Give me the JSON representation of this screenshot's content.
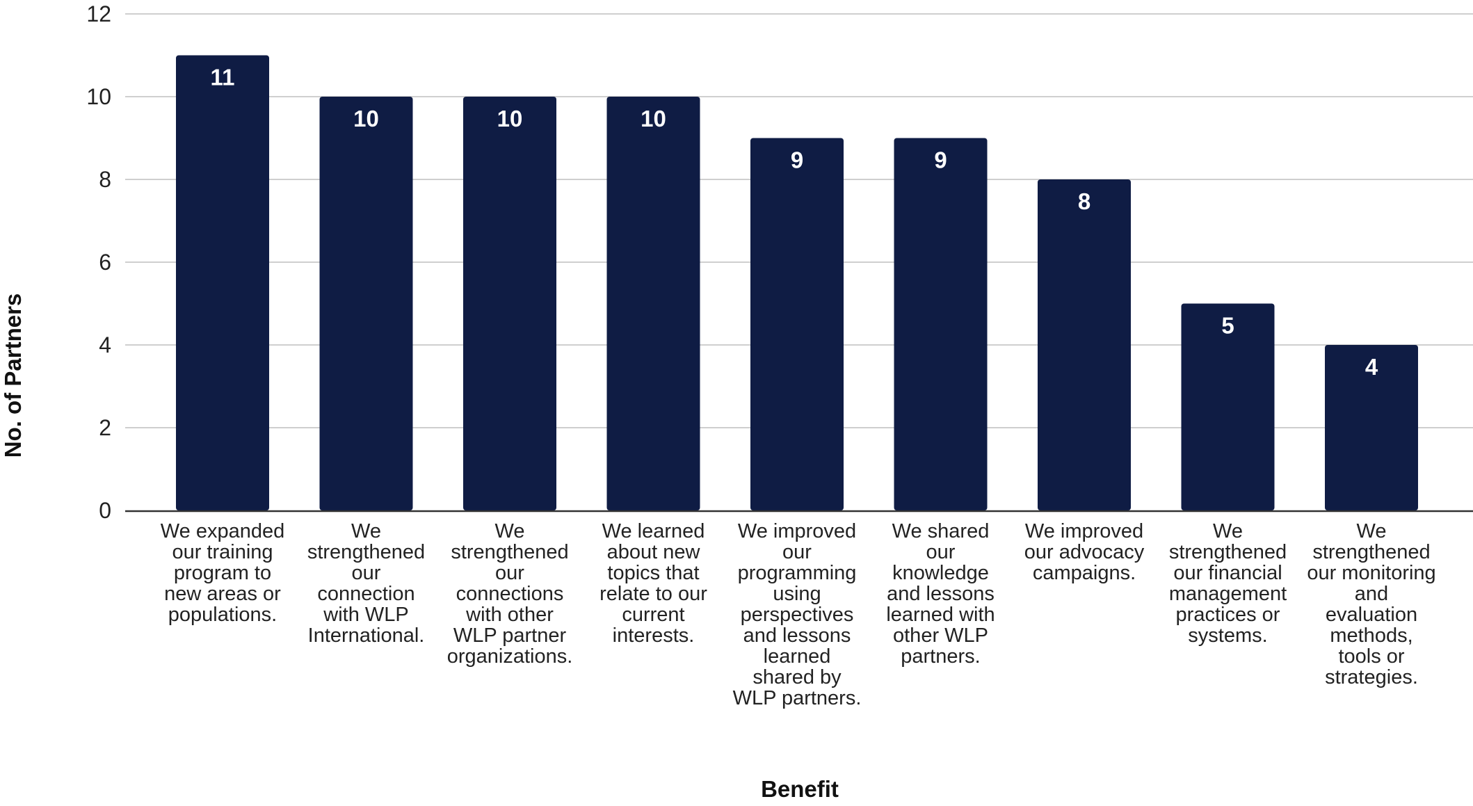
{
  "chart_data": {
    "type": "bar",
    "title": "",
    "xlabel": "Benefit",
    "ylabel": "No. of Partners",
    "ylim": [
      0,
      12
    ],
    "yticks": [
      0,
      2,
      4,
      6,
      8,
      10,
      12
    ],
    "grid": true,
    "legend": "none",
    "categories": [
      [
        "We expanded",
        "our training",
        "program to",
        "new areas or",
        "populations."
      ],
      [
        "We",
        "strengthened",
        "our",
        "connection",
        "with WLP",
        "International."
      ],
      [
        "We",
        "strengthened",
        "our",
        "connections",
        "with other",
        "WLP partner",
        "organizations."
      ],
      [
        "We learned",
        "about new",
        "topics that",
        "relate to our",
        "current",
        "interests."
      ],
      [
        "We improved",
        "our",
        "programming",
        "using",
        "perspectives",
        "and lessons",
        "learned",
        "shared by",
        "WLP partners."
      ],
      [
        "We shared",
        "our",
        "knowledge",
        "and lessons",
        "learned with",
        "other WLP",
        "partners."
      ],
      [
        "We improved",
        "our advocacy",
        "campaigns."
      ],
      [
        "We",
        "strengthened",
        "our financial",
        "management",
        "practices or",
        "systems."
      ],
      [
        "We",
        "strengthened",
        "our monitoring",
        "and",
        "evaluation",
        "methods,",
        "tools or",
        "strategies."
      ]
    ],
    "values": [
      11,
      10,
      10,
      10,
      9,
      9,
      8,
      5,
      4
    ],
    "data_labels": [
      "11",
      "10",
      "10",
      "10",
      "9",
      "9",
      "8",
      "5",
      "4"
    ],
    "colors": {
      "bar": "#0f1c44",
      "data_label": "#ffffff",
      "grid": "#cfcfcf",
      "axis": "#333333",
      "tick_text": "#222222",
      "title_text": "#111111"
    }
  }
}
